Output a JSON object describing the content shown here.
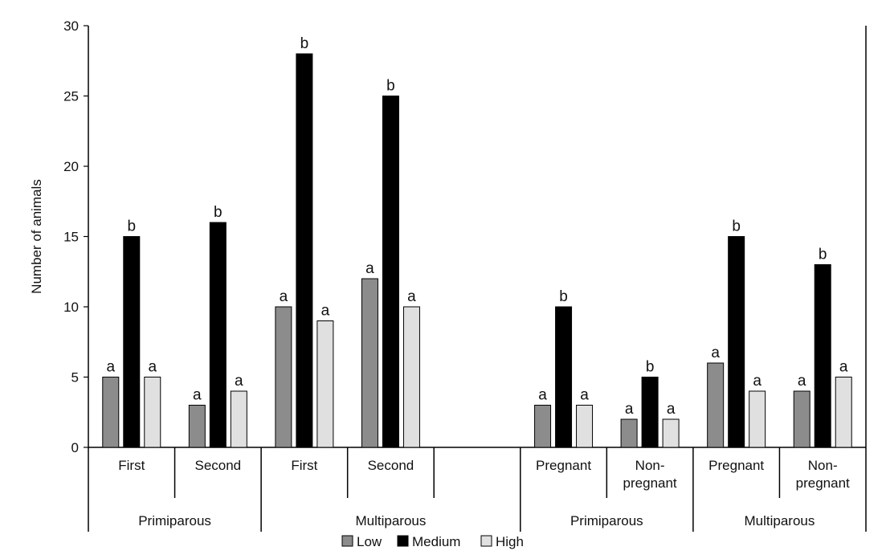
{
  "chart_data": {
    "type": "bar",
    "ylabel": "Number of animals",
    "ylim": [
      0,
      30
    ],
    "yticks": [
      0,
      5,
      10,
      15,
      20,
      25,
      30
    ],
    "grid": false,
    "legend_position": "bottom",
    "series": [
      {
        "name": "Low",
        "color": "#8c8c8c"
      },
      {
        "name": "Medium",
        "color": "#000000"
      },
      {
        "name": "High",
        "color": "#e0e0e0"
      }
    ],
    "clusters": [
      {
        "label": "First",
        "values": [
          5,
          15,
          5
        ],
        "letters": [
          "a",
          "b",
          "a"
        ]
      },
      {
        "label": "Second",
        "values": [
          3,
          16,
          4
        ],
        "letters": [
          "a",
          "b",
          "a"
        ]
      },
      {
        "label": "First",
        "values": [
          10,
          28,
          9
        ],
        "letters": [
          "a",
          "b",
          "a"
        ]
      },
      {
        "label": "Second",
        "values": [
          12,
          25,
          10
        ],
        "letters": [
          "a",
          "b",
          "a"
        ]
      },
      {
        "label": "",
        "values": null,
        "letters": null
      },
      {
        "label": "Pregnant",
        "values": [
          3,
          10,
          3
        ],
        "letters": [
          "a",
          "b",
          "a"
        ]
      },
      {
        "label": "Non-\npregnant",
        "values": [
          2,
          5,
          2
        ],
        "letters": [
          "a",
          "b",
          "a"
        ]
      },
      {
        "label": "Pregnant",
        "values": [
          6,
          15,
          4
        ],
        "letters": [
          "a",
          "b",
          "a"
        ]
      },
      {
        "label": "Non-\npregnant",
        "values": [
          4,
          13,
          5
        ],
        "letters": [
          "a",
          "b",
          "a"
        ]
      }
    ],
    "groups": [
      {
        "label": "Primiparous",
        "start": 0,
        "end": 2
      },
      {
        "label": "Multiparous",
        "start": 2,
        "end": 5
      },
      {
        "label": "Primiparous",
        "start": 5,
        "end": 7
      },
      {
        "label": "Multiparous",
        "start": 7,
        "end": 9
      }
    ]
  }
}
